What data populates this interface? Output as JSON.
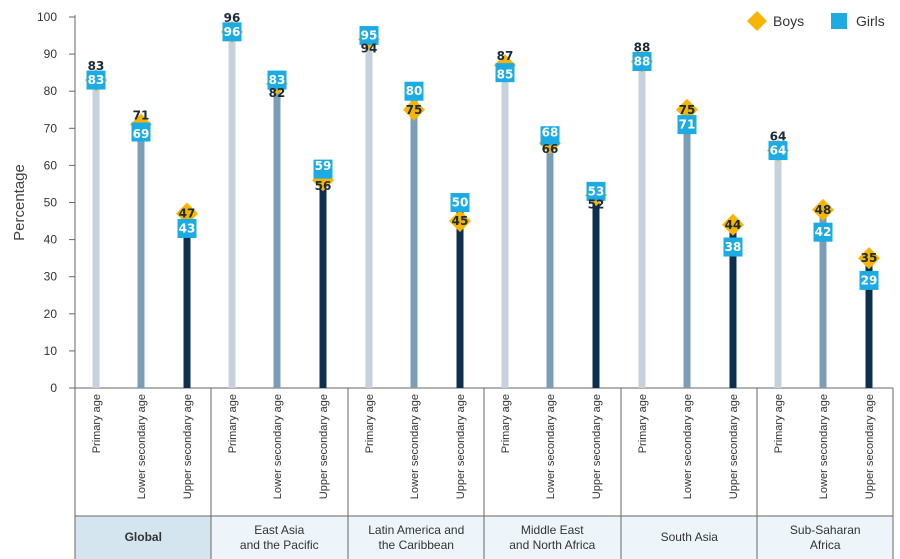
{
  "chart_data": {
    "type": "lollipop",
    "ylabel": "Percentage",
    "ylim": [
      0,
      100
    ],
    "yticks": [
      0,
      10,
      20,
      30,
      40,
      50,
      60,
      70,
      80,
      90,
      100
    ],
    "grid": false,
    "legend_position": "top-right",
    "legend": [
      {
        "name": "Boys",
        "shape": "diamond",
        "color": "#F7B500"
      },
      {
        "name": "Girls",
        "shape": "square",
        "color": "#1CABE2"
      }
    ],
    "age_groups": [
      "Primary age",
      "Lower secondary age",
      "Upper secondary age"
    ],
    "age_colors": [
      "#C5D1DC",
      "#7B9DB8",
      "#0E3050"
    ],
    "regions": [
      {
        "name": "Global",
        "highlight": true,
        "boys": [
          83,
          71,
          47
        ],
        "girls": [
          83,
          69,
          43
        ]
      },
      {
        "name": "East Asia and the Pacific",
        "lines": [
          "East Asia",
          "and the Pacific"
        ],
        "boys": [
          96,
          82,
          56
        ],
        "girls": [
          96,
          83,
          59
        ]
      },
      {
        "name": "Latin America and the Caribbean",
        "lines": [
          "Latin America and",
          "the Caribbean"
        ],
        "boys": [
          94,
          75,
          45
        ],
        "girls": [
          95,
          80,
          50
        ]
      },
      {
        "name": "Middle East and North Africa",
        "lines": [
          "Middle East",
          "and North Africa"
        ],
        "boys": [
          87,
          66,
          52
        ],
        "girls": [
          85,
          68,
          53
        ]
      },
      {
        "name": "South Asia",
        "lines": [
          "South Asia"
        ],
        "boys": [
          88,
          75,
          44
        ],
        "girls": [
          88,
          71,
          38
        ]
      },
      {
        "name": "Sub-Saharan Africa",
        "lines": [
          "Sub-Saharan",
          "Africa"
        ],
        "boys": [
          64,
          48,
          35
        ],
        "girls": [
          64,
          42,
          29
        ]
      }
    ]
  }
}
